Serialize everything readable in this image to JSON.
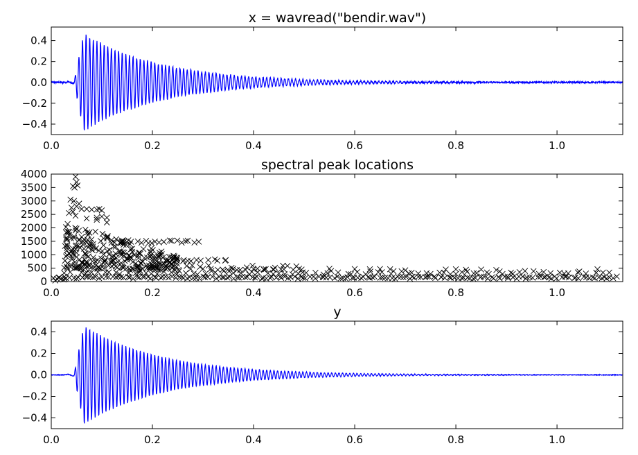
{
  "chart_data": [
    {
      "type": "line",
      "title": "x = wavread(\"bendir.wav\")",
      "xlabel": "",
      "ylabel": "",
      "xlim": [
        0,
        1.13
      ],
      "ylim": [
        -0.5,
        0.53
      ],
      "xticks": [
        "0.0",
        "0.2",
        "0.4",
        "0.6",
        "0.8",
        "1.0"
      ],
      "yticks": [
        "0.4",
        "0.2",
        "0.0",
        "−0.2",
        "−0.4"
      ],
      "color": "#0000ff",
      "signal": {
        "onset_s": 0.045,
        "peak_amplitude": 0.53,
        "frequency_hz": 140,
        "decay_rate": 6.5,
        "noise_floor": 0.008,
        "end_s": 1.13
      }
    },
    {
      "type": "scatter",
      "title": "spectral peak locations",
      "xlabel": "",
      "ylabel": "",
      "xlim": [
        0,
        1.13
      ],
      "ylim": [
        0,
        4000
      ],
      "xticks": [
        "0.0",
        "0.2",
        "0.4",
        "0.6",
        "0.8",
        "1.0"
      ],
      "yticks": [
        "4000",
        "3500",
        "3000",
        "2500",
        "2000",
        "1500",
        "1000",
        "500",
        "0"
      ],
      "marker": "x",
      "color": "#000000",
      "bands": [
        {
          "x": [
            0.0,
            1.12
          ],
          "y": 150,
          "spread": 40,
          "step": 0.006
        },
        {
          "x": [
            0.0,
            0.03
          ],
          "y": 60,
          "spread": 60,
          "step": 0.006
        },
        {
          "x": [
            0.03,
            1.11
          ],
          "y": 330,
          "spread": 70,
          "step": 0.012
        },
        {
          "x": [
            0.03,
            0.5
          ],
          "y": 520,
          "spread": 90,
          "step": 0.009
        },
        {
          "x": [
            0.25,
            0.29
          ],
          "y": 780,
          "spread": 40,
          "step": 0.007
        },
        {
          "x": [
            0.12,
            0.29
          ],
          "y": 1480,
          "spread": 60,
          "step": 0.008
        },
        {
          "x": [
            0.3,
            0.35
          ],
          "y": 800,
          "spread": 30,
          "step": 0.01
        }
      ],
      "cluster": {
        "x": [
          0.027,
          0.25
        ],
        "y": [
          400,
          2200
        ],
        "count": 260
      },
      "points": [
        [
          0.048,
          3900
        ],
        [
          0.05,
          3700
        ],
        [
          0.043,
          3550
        ],
        [
          0.052,
          3580
        ],
        [
          0.046,
          3500
        ],
        [
          0.038,
          3050
        ],
        [
          0.045,
          3000
        ],
        [
          0.055,
          2900
        ],
        [
          0.05,
          2800
        ],
        [
          0.04,
          2750
        ],
        [
          0.06,
          2700
        ],
        [
          0.07,
          2700
        ],
        [
          0.08,
          2680
        ],
        [
          0.09,
          2680
        ],
        [
          0.1,
          2650
        ],
        [
          0.095,
          2700
        ],
        [
          0.043,
          2600
        ],
        [
          0.035,
          2550
        ],
        [
          0.048,
          2450
        ],
        [
          0.1,
          2420
        ],
        [
          0.11,
          2380
        ],
        [
          0.09,
          2380
        ],
        [
          0.07,
          2350
        ],
        [
          0.09,
          2300
        ],
        [
          0.11,
          2200
        ],
        [
          0.345,
          800
        ],
        [
          0.49,
          480
        ],
        [
          0.55,
          480
        ],
        [
          0.6,
          470
        ],
        [
          0.63,
          460
        ],
        [
          0.65,
          470
        ],
        [
          0.67,
          460
        ],
        [
          0.7,
          420
        ],
        [
          0.78,
          450
        ],
        [
          0.8,
          460
        ],
        [
          0.82,
          440
        ],
        [
          0.85,
          450
        ],
        [
          0.88,
          430
        ],
        [
          1.08,
          460
        ],
        [
          0.36,
          480
        ],
        [
          0.4,
          470
        ],
        [
          0.42,
          460
        ],
        [
          0.44,
          450
        ],
        [
          0.46,
          460
        ]
      ]
    },
    {
      "type": "line",
      "title": "y",
      "xlabel": "",
      "ylabel": "",
      "xlim": [
        0,
        1.13
      ],
      "ylim": [
        -0.5,
        0.5
      ],
      "xticks": [
        "0.0",
        "0.2",
        "0.4",
        "0.6",
        "0.8",
        "1.0"
      ],
      "yticks": [
        "0.4",
        "0.2",
        "0.0",
        "−0.2",
        "−0.4"
      ],
      "color": "#0000ff",
      "signal": {
        "onset_s": 0.045,
        "peak_amplitude": 0.52,
        "frequency_hz": 140,
        "decay_rate": 6.5,
        "noise_floor": 0.003,
        "end_s": 1.13
      }
    }
  ]
}
